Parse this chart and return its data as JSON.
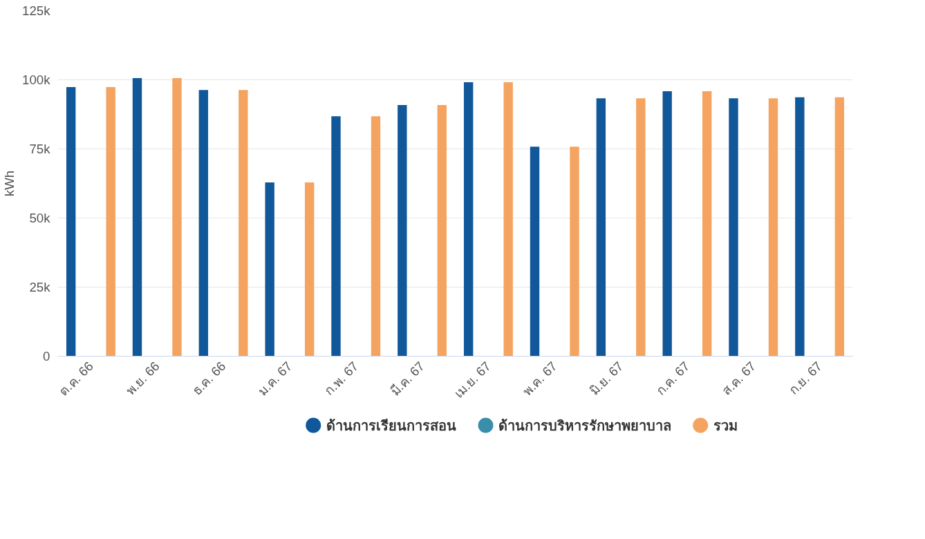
{
  "chart_data": {
    "type": "bar",
    "ylabel": "kWh",
    "categories": [
      "ต.ค. 66",
      "พ.ย. 66",
      "ธ.ค. 66",
      "ม.ค. 67",
      "ก.พ. 67",
      "มี.ค. 67",
      "เม.ย. 67",
      "พ.ค. 67",
      "มิ.ย. 67",
      "ก.ค. 67",
      "ส.ค. 67",
      "ก.ย. 67"
    ],
    "series": [
      {
        "name": "ด้านการเรียนการสอน",
        "color": "#11589a",
        "values": [
          97400,
          100600,
          96300,
          62900,
          86800,
          90900,
          99100,
          75800,
          93300,
          95900,
          93300,
          93700
        ]
      },
      {
        "name": "ด้านการบริหารรักษาพยาบาล",
        "color": "#3a8eab",
        "values": [
          0,
          0,
          0,
          0,
          0,
          0,
          0,
          0,
          0,
          0,
          0,
          0
        ]
      },
      {
        "name": "รวม",
        "color": "#f4a460",
        "values": [
          97400,
          100600,
          96300,
          62900,
          86800,
          90900,
          99100,
          75800,
          93300,
          95900,
          93300,
          93700
        ]
      }
    ],
    "ylim": [
      0,
      125000
    ],
    "yticks": [
      0,
      {
        "value": 25000,
        "label": "25k"
      },
      {
        "value": 50000,
        "label": "50k"
      },
      {
        "value": 75000,
        "label": "75k"
      },
      {
        "value": 100000,
        "label": "100k"
      },
      {
        "value": 125000,
        "label": "125k"
      }
    ],
    "grid": "y",
    "legend": "bottom"
  }
}
